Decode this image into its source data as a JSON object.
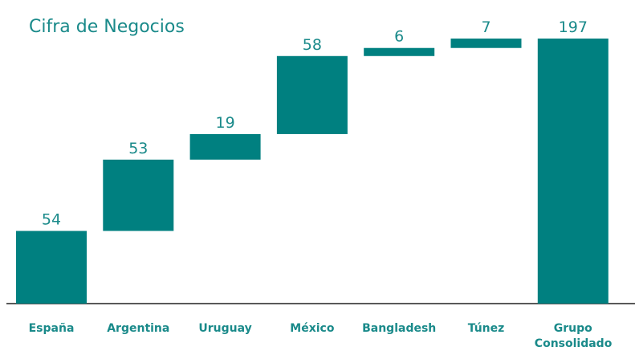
{
  "chart_data": {
    "type": "waterfall",
    "title": "Cifra de Negocios",
    "categories": [
      "España",
      "Argentina",
      "Uruguay",
      "México",
      "Bangladesh",
      "Túnez",
      "Grupo Consolidado"
    ],
    "values": [
      54,
      53,
      19,
      58,
      6,
      7,
      197
    ],
    "total": [
      false,
      false,
      false,
      false,
      false,
      false,
      true
    ],
    "color": "#008080"
  }
}
